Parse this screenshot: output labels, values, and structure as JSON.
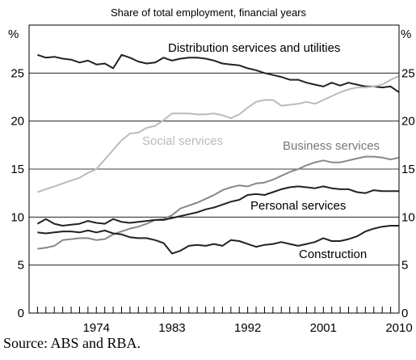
{
  "chart_data": {
    "type": "line",
    "title": "Share of total employment, financial years",
    "y_unit_label": "%",
    "ylim": [
      0,
      30
    ],
    "y_ticks": [
      0,
      5,
      10,
      15,
      20,
      25
    ],
    "xlim": [
      1966,
      2010
    ],
    "x_ticks": [
      1974,
      1983,
      1992,
      2001,
      2010
    ],
    "grid": true,
    "legend": "none (direct labels)",
    "x": [
      1967,
      1968,
      1969,
      1970,
      1971,
      1972,
      1973,
      1974,
      1975,
      1976,
      1977,
      1978,
      1979,
      1980,
      1981,
      1982,
      1983,
      1984,
      1985,
      1986,
      1987,
      1988,
      1989,
      1990,
      1991,
      1992,
      1993,
      1994,
      1995,
      1996,
      1997,
      1998,
      1999,
      2000,
      2001,
      2002,
      2003,
      2004,
      2005,
      2006,
      2007,
      2008,
      2009,
      2010
    ],
    "series": [
      {
        "name": "Distribution services and utilities",
        "color": "#222222",
        "values": [
          26.9,
          26.6,
          26.7,
          26.5,
          26.4,
          26.1,
          26.3,
          25.9,
          26.0,
          25.5,
          26.9,
          26.6,
          26.2,
          26.0,
          26.1,
          26.6,
          26.3,
          26.5,
          26.6,
          26.6,
          26.5,
          26.3,
          26.0,
          25.9,
          25.8,
          25.5,
          25.3,
          25.0,
          24.8,
          24.6,
          24.3,
          24.3,
          24.0,
          23.8,
          23.6,
          24.0,
          23.7,
          24.0,
          23.8,
          23.6,
          23.6,
          23.5,
          23.6,
          23.0
        ]
      },
      {
        "name": "Social services",
        "color": "#bbbbbb",
        "values": [
          12.6,
          12.9,
          13.2,
          13.5,
          13.8,
          14.1,
          14.6,
          15.0,
          16.0,
          17.0,
          18.0,
          18.7,
          18.8,
          19.3,
          19.5,
          20.1,
          20.8,
          20.8,
          20.8,
          20.7,
          20.7,
          20.8,
          20.6,
          20.3,
          20.7,
          21.4,
          22.0,
          22.2,
          22.2,
          21.6,
          21.7,
          21.8,
          22.0,
          21.8,
          22.2,
          22.6,
          23.0,
          23.3,
          23.5,
          23.5,
          23.6,
          23.8,
          24.3,
          24.7
        ]
      },
      {
        "name": "Business services",
        "color": "#888888",
        "values": [
          6.7,
          6.8,
          7.0,
          7.6,
          7.7,
          7.8,
          7.8,
          7.6,
          7.7,
          8.2,
          8.5,
          8.8,
          9.0,
          9.3,
          9.7,
          9.8,
          10.2,
          10.9,
          11.2,
          11.5,
          11.9,
          12.3,
          12.8,
          13.1,
          13.3,
          13.2,
          13.5,
          13.6,
          13.9,
          14.3,
          14.7,
          15.0,
          15.4,
          15.7,
          15.9,
          15.7,
          15.7,
          15.9,
          16.1,
          16.3,
          16.3,
          16.2,
          16.0,
          16.2
        ]
      },
      {
        "name": "Personal services",
        "color": "#222222",
        "values": [
          9.3,
          9.8,
          9.3,
          9.1,
          9.2,
          9.3,
          9.6,
          9.4,
          9.3,
          9.8,
          9.5,
          9.4,
          9.5,
          9.6,
          9.7,
          9.7,
          9.9,
          10.1,
          10.3,
          10.5,
          10.8,
          11.0,
          11.3,
          11.6,
          11.8,
          12.3,
          12.4,
          12.3,
          12.6,
          12.9,
          13.1,
          13.2,
          13.1,
          13.0,
          13.2,
          13.0,
          12.9,
          12.9,
          12.6,
          12.5,
          12.8,
          12.7,
          12.7,
          12.7
        ]
      },
      {
        "name": "Construction",
        "color": "#222222",
        "values": [
          8.4,
          8.3,
          8.4,
          8.5,
          8.5,
          8.4,
          8.6,
          8.4,
          8.6,
          8.3,
          8.2,
          7.9,
          7.8,
          7.8,
          7.6,
          7.3,
          6.2,
          6.5,
          7.0,
          7.1,
          7.0,
          7.2,
          7.0,
          7.6,
          7.5,
          7.2,
          6.9,
          7.1,
          7.2,
          7.4,
          7.2,
          7.0,
          7.2,
          7.4,
          7.8,
          7.5,
          7.5,
          7.7,
          8.0,
          8.5,
          8.8,
          9.0,
          9.1,
          9.1
        ]
      }
    ]
  },
  "source_note": "Source: ABS and RBA."
}
